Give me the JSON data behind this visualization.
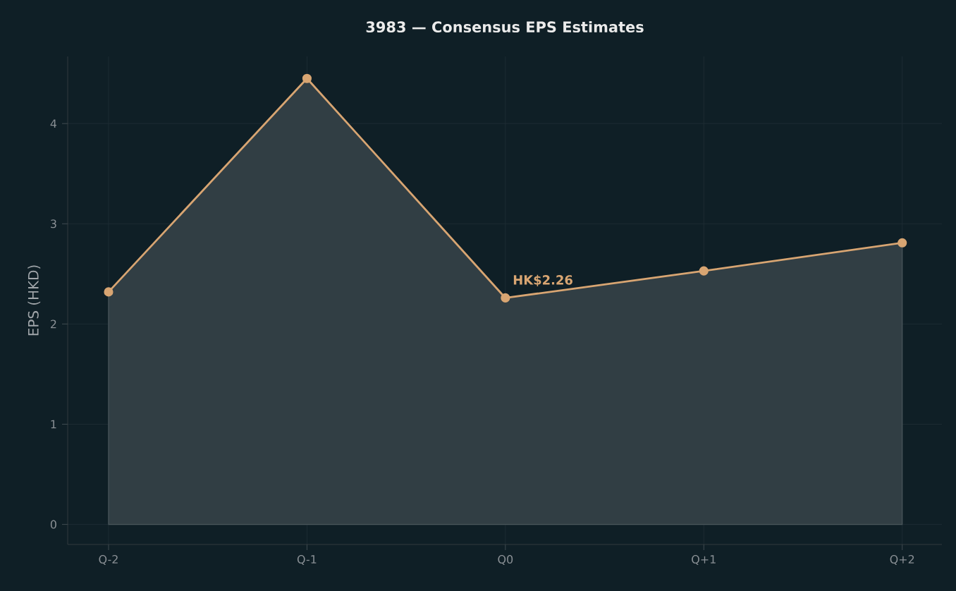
{
  "chart_data": {
    "type": "area",
    "title": "3983 — Consensus EPS Estimates",
    "ylabel": "EPS (HKD)",
    "categories": [
      "Q-2",
      "Q-1",
      "Q0",
      "Q+1",
      "Q+2"
    ],
    "series": [
      {
        "color": "#d8a572",
        "values": [
          2.32,
          4.45,
          2.26,
          2.53,
          2.81
        ]
      }
    ],
    "ylim": [
      -0.2,
      4.67
    ],
    "yticks": [
      0,
      1,
      2,
      3,
      4
    ],
    "grid": true,
    "marker": "circle",
    "line_style": "solid",
    "annotations": [
      {
        "text": "HK$2.26",
        "x": "Q0",
        "y": 2.26
      }
    ]
  }
}
